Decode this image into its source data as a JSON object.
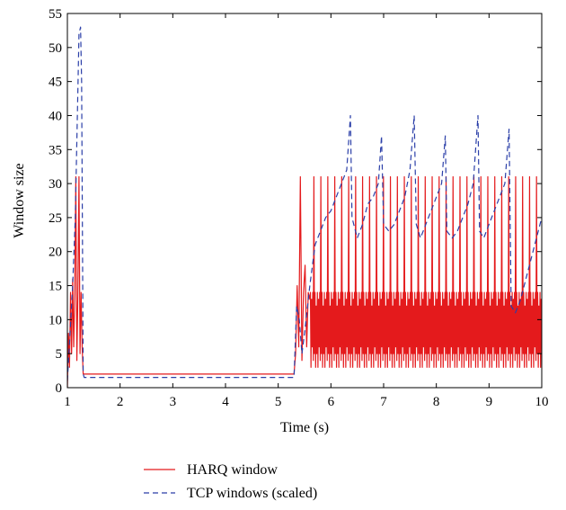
{
  "chart_data": {
    "type": "line",
    "title": "",
    "xlabel": "Time (s)",
    "ylabel": "Window size",
    "xlim": [
      1,
      10
    ],
    "ylim": [
      0,
      55
    ],
    "xticks": [
      1,
      2,
      3,
      4,
      5,
      6,
      7,
      8,
      9,
      10
    ],
    "yticks": [
      0,
      5,
      10,
      15,
      20,
      25,
      30,
      35,
      40,
      45,
      50,
      55
    ],
    "grid": false,
    "legend_position": "below",
    "colors": {
      "harq": "#e41a1c",
      "tcp": "#2b3fa8"
    },
    "series": [
      {
        "name": "HARQ window",
        "style": "solid",
        "x": [
          1.0,
          1.02,
          1.04,
          1.06,
          1.08,
          1.1,
          1.12,
          1.14,
          1.16,
          1.18,
          1.2,
          1.22,
          1.24,
          1.26,
          1.28,
          1.3,
          1.32,
          2.0,
          3.0,
          4.0,
          5.0,
          5.3,
          5.33,
          5.36,
          5.39,
          5.42,
          5.45,
          5.48,
          5.51,
          5.54,
          5.57,
          5.6
        ],
        "y": [
          0,
          8,
          3,
          14,
          5,
          16,
          6,
          14,
          31,
          4,
          14,
          31,
          5,
          14,
          6,
          2,
          2,
          2,
          2,
          2,
          2,
          2,
          5,
          15,
          6,
          31,
          4,
          14,
          18,
          6,
          14,
          13
        ]
      },
      {
        "name": "TCP windows (scaled)",
        "style": "dashed",
        "x": [
          1.0,
          1.1,
          1.15,
          1.2,
          1.22,
          1.25,
          1.27,
          1.3,
          1.32,
          2.0,
          3.0,
          4.0,
          5.0,
          5.3,
          5.35,
          5.4,
          5.45,
          5.5,
          5.6,
          5.7,
          5.8,
          5.9,
          6.0,
          6.1,
          6.2,
          6.3,
          6.37,
          6.4,
          6.5,
          6.6,
          6.7,
          6.8,
          6.9,
          6.96,
          7.0,
          7.1,
          7.2,
          7.3,
          7.4,
          7.5,
          7.58,
          7.62,
          7.7,
          7.8,
          7.9,
          8.0,
          8.1,
          8.17,
          8.2,
          8.3,
          8.4,
          8.5,
          8.6,
          8.7,
          8.79,
          8.82,
          8.9,
          9.0,
          9.1,
          9.2,
          9.3,
          9.38,
          9.42,
          9.5,
          9.6,
          9.7,
          9.8,
          9.9,
          10.0
        ],
        "y": [
          1,
          15,
          25,
          44,
          52,
          53,
          45,
          2,
          1.5,
          1.5,
          1.5,
          1.5,
          1.5,
          1.5,
          12,
          10,
          5,
          8,
          15,
          21,
          23,
          25,
          26,
          28,
          30,
          32,
          40,
          25,
          22,
          24,
          27,
          28,
          30,
          37,
          24,
          23,
          24,
          26,
          28,
          32,
          40,
          24,
          22,
          24,
          26,
          28,
          30,
          37,
          23,
          22,
          23,
          25,
          27,
          30,
          40,
          23,
          22,
          24,
          26,
          28,
          30,
          38,
          12,
          11,
          13,
          16,
          19,
          22,
          25
        ]
      }
    ],
    "dense_oscillation": {
      "series": "HARQ window",
      "x_start": 5.6,
      "x_end": 10.0,
      "period": 0.066,
      "pattern": [
        5,
        14,
        3,
        13,
        6,
        14,
        4,
        31,
        5,
        14,
        3,
        12
      ]
    }
  }
}
